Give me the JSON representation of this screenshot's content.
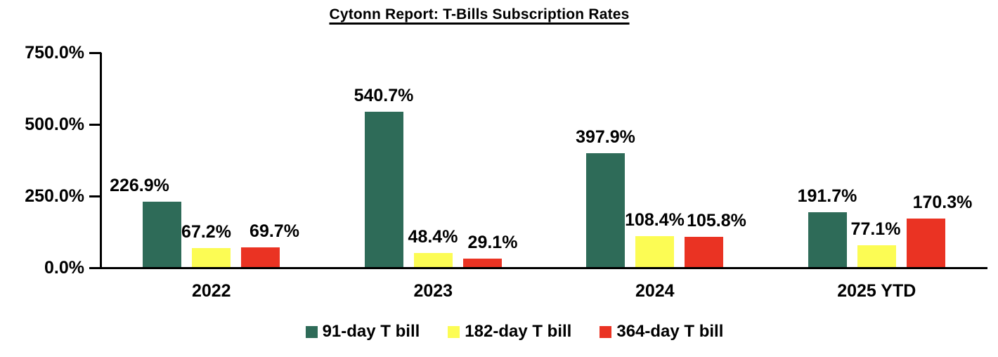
{
  "chart_data": {
    "type": "bar",
    "title": "Cytonn Report: T-Bills Subscription Rates",
    "categories": [
      "2022",
      "2023",
      "2024",
      "2025 YTD"
    ],
    "series": [
      {
        "name": "91-day T bill",
        "color": "#2E6B58",
        "values": [
          226.9,
          540.7,
          397.9,
          191.7
        ],
        "label_dx": [
          -32,
          0,
          0,
          0
        ]
      },
      {
        "name": "182-day T bill",
        "color": "#FCFC54",
        "values": [
          67.2,
          48.4,
          108.4,
          77.1
        ],
        "label_dx": [
          -7,
          0,
          0,
          -1
        ]
      },
      {
        "name": "364-day T bill",
        "color": "#EA3323",
        "values": [
          69.7,
          29.1,
          105.8,
          170.3
        ],
        "label_dx": [
          20,
          15,
          18,
          24
        ]
      }
    ],
    "value_suffix": "%",
    "value_decimals": 1,
    "ylim": [
      0,
      750
    ],
    "ytick_step": 250,
    "ytick_labels": [
      "0.0%",
      "250.0%",
      "500.0%",
      "750.0%"
    ],
    "xlabel": "",
    "ylabel": "",
    "grid": false,
    "legend_position": "bottom",
    "axis_color": "#000000",
    "text_color": "#000000",
    "background_color": "#FFFFFF"
  }
}
